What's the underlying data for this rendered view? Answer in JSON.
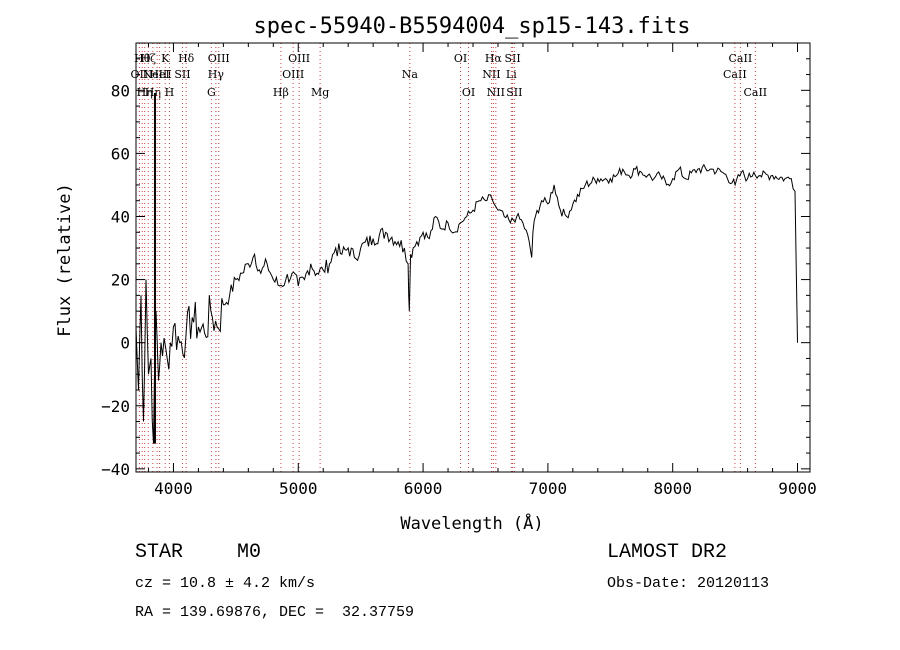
{
  "chart_data": {
    "type": "line",
    "title": "spec-55940-B5594004_sp15-143.fits",
    "xlabel": "Wavelength (Å)",
    "ylabel": "Flux (relative)",
    "xlim": [
      3700,
      9100
    ],
    "ylim": [
      -41,
      95
    ],
    "x_ticks": [
      4000,
      5000,
      6000,
      7000,
      8000,
      9000
    ],
    "y_ticks": [
      -40,
      -20,
      0,
      20,
      40,
      60,
      80
    ],
    "grid": false,
    "series": [
      {
        "x": [
          3700,
          3720,
          3740,
          3760,
          3780,
          3800,
          3820,
          3840,
          3860,
          3880,
          3900,
          3950,
          4000,
          4050,
          4100,
          4150,
          4200,
          4250,
          4300,
          4350,
          4400,
          4450,
          4500,
          4550,
          4600,
          4650,
          4700,
          4750,
          4800,
          4850,
          4900,
          4950,
          5000,
          5050,
          5100,
          5150,
          5200,
          5250,
          5300,
          5350,
          5400,
          5450,
          5500,
          5600,
          5700,
          5800,
          5850,
          5880,
          5890,
          5900,
          5920,
          5950,
          6000,
          6050,
          6100,
          6150,
          6200,
          6250,
          6300,
          6350,
          6400,
          6450,
          6500,
          6550,
          6570,
          6600,
          6650,
          6700,
          6750,
          6800,
          6850,
          6870,
          6880,
          6900,
          6950,
          7000,
          7050,
          7100,
          7150,
          7200,
          7300,
          7400,
          7500,
          7550,
          7600,
          7650,
          7700,
          7750,
          7800,
          7850,
          7900,
          7950,
          8000,
          8050,
          8100,
          8200,
          8300,
          8400,
          8500,
          8550,
          8600,
          8650,
          8700,
          8800,
          8900,
          8950,
          8980,
          9000
        ],
        "y": [
          5,
          -15,
          15,
          -25,
          20,
          -10,
          -5,
          -32,
          10,
          -12,
          0,
          -5,
          5,
          0,
          2,
          8,
          5,
          3,
          10,
          5,
          12,
          15,
          20,
          22,
          25,
          28,
          22,
          25,
          20,
          18,
          20,
          22,
          18,
          20,
          25,
          22,
          23,
          25,
          30,
          28,
          30,
          27,
          30,
          33,
          35,
          32,
          30,
          25,
          10,
          28,
          30,
          32,
          35,
          33,
          40,
          36,
          38,
          35,
          38,
          40,
          42,
          45,
          45,
          46,
          44,
          42,
          40,
          38,
          40,
          38,
          32,
          27,
          35,
          40,
          45,
          44,
          50,
          42,
          40,
          44,
          50,
          52,
          52,
          53,
          55,
          53,
          55,
          54,
          53,
          52,
          53,
          50,
          52,
          55,
          52,
          55,
          55,
          54,
          50,
          54,
          52,
          54,
          53,
          53,
          52,
          52,
          48,
          0
        ]
      }
    ],
    "line_markers": [
      {
        "w": 3727,
        "label": "OII",
        "row": 2
      },
      {
        "w": 3750,
        "label": "Hθ",
        "row": 1
      },
      {
        "w": 3770,
        "label": "Hη",
        "row": 3
      },
      {
        "w": 3798,
        "label": "Hζ",
        "row": 1
      },
      {
        "w": 3835,
        "label": "Hη",
        "row": 3
      },
      {
        "w": 3869,
        "label": "NeIII",
        "row": 2
      },
      {
        "w": 3889,
        "label": "HeI",
        "row": 2
      },
      {
        "w": 3934,
        "label": "K",
        "row": 1
      },
      {
        "w": 3968,
        "label": "H",
        "row": 3
      },
      {
        "w": 4072,
        "label": "SII",
        "row": 2
      },
      {
        "w": 4102,
        "label": "Hδ",
        "row": 1
      },
      {
        "w": 4304,
        "label": "G",
        "row": 3
      },
      {
        "w": 4340,
        "label": "Hγ",
        "row": 2
      },
      {
        "w": 4363,
        "label": "OIII",
        "row": 1
      },
      {
        "w": 4861,
        "label": "Hβ",
        "row": 3
      },
      {
        "w": 4959,
        "label": "OIII",
        "row": 2
      },
      {
        "w": 5007,
        "label": "OIII",
        "row": 1
      },
      {
        "w": 5175,
        "label": "Mg",
        "row": 3
      },
      {
        "w": 5894,
        "label": "Na",
        "row": 2
      },
      {
        "w": 6300,
        "label": "OI",
        "row": 1
      },
      {
        "w": 6364,
        "label": "OI",
        "row": 3
      },
      {
        "w": 6548,
        "label": "NII",
        "row": 2
      },
      {
        "w": 6563,
        "label": "Hα",
        "row": 1
      },
      {
        "w": 6583,
        "label": "NII",
        "row": 3
      },
      {
        "w": 6707,
        "label": "Li",
        "row": 2
      },
      {
        "w": 6717,
        "label": "SII",
        "row": 1
      },
      {
        "w": 6731,
        "label": "SII",
        "row": 3
      },
      {
        "w": 8498,
        "label": "CaII",
        "row": 2
      },
      {
        "w": 8542,
        "label": "CaII",
        "row": 1
      },
      {
        "w": 8662,
        "label": "CaII",
        "row": 3
      }
    ]
  },
  "info": {
    "class": "STAR",
    "subclass": "M0",
    "survey": "LAMOST DR2",
    "cz": "cz = 10.8 ± 4.2 km/s",
    "obs_date": "Obs-Date: 20120113",
    "coords": "RA = 139.69876, DEC =  32.37759"
  }
}
